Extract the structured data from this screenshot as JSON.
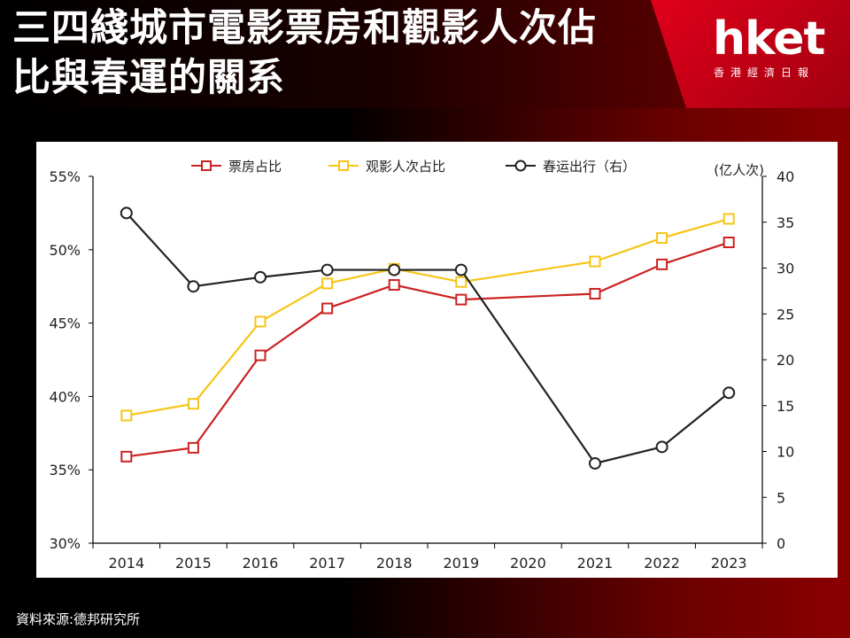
{
  "header": {
    "title": "三四綫城市電影票房和觀影人次佔比與春運的關系",
    "logo": "hket",
    "logo_sub": "香港經濟日報"
  },
  "source": "資料來源:德邦研究所",
  "chart_data": {
    "type": "line",
    "categories": [
      "2014",
      "2015",
      "2016",
      "2017",
      "2018",
      "2019",
      "2020",
      "2021",
      "2022",
      "2023"
    ],
    "left_axis": {
      "ticks": [
        "30%",
        "35%",
        "40%",
        "45%",
        "50%",
        "55%"
      ],
      "min": 30,
      "max": 55
    },
    "right_axis": {
      "ticks": [
        "0",
        "5",
        "10",
        "15",
        "20",
        "25",
        "30",
        "35",
        "40"
      ],
      "min": 0,
      "max": 40,
      "label": "(亿人次)"
    },
    "series": [
      {
        "name": "票房占比",
        "axis": "left",
        "color": "#cc2222",
        "marker": "square",
        "values": [
          35.9,
          36.5,
          42.8,
          46.0,
          47.6,
          46.6,
          null,
          47.0,
          49.0,
          50.5
        ]
      },
      {
        "name": "观影人次占比",
        "axis": "left",
        "color": "#f5c518",
        "marker": "square",
        "values": [
          38.7,
          39.5,
          45.1,
          47.7,
          48.7,
          47.8,
          null,
          49.2,
          50.8,
          52.1
        ]
      },
      {
        "name": "春运出行（右）",
        "axis": "right",
        "color": "#222222",
        "marker": "circle",
        "values": [
          36.0,
          28.0,
          29.0,
          29.8,
          29.8,
          29.8,
          null,
          8.7,
          10.5,
          16.4
        ]
      }
    ],
    "grid": false,
    "legend_position": "top"
  }
}
